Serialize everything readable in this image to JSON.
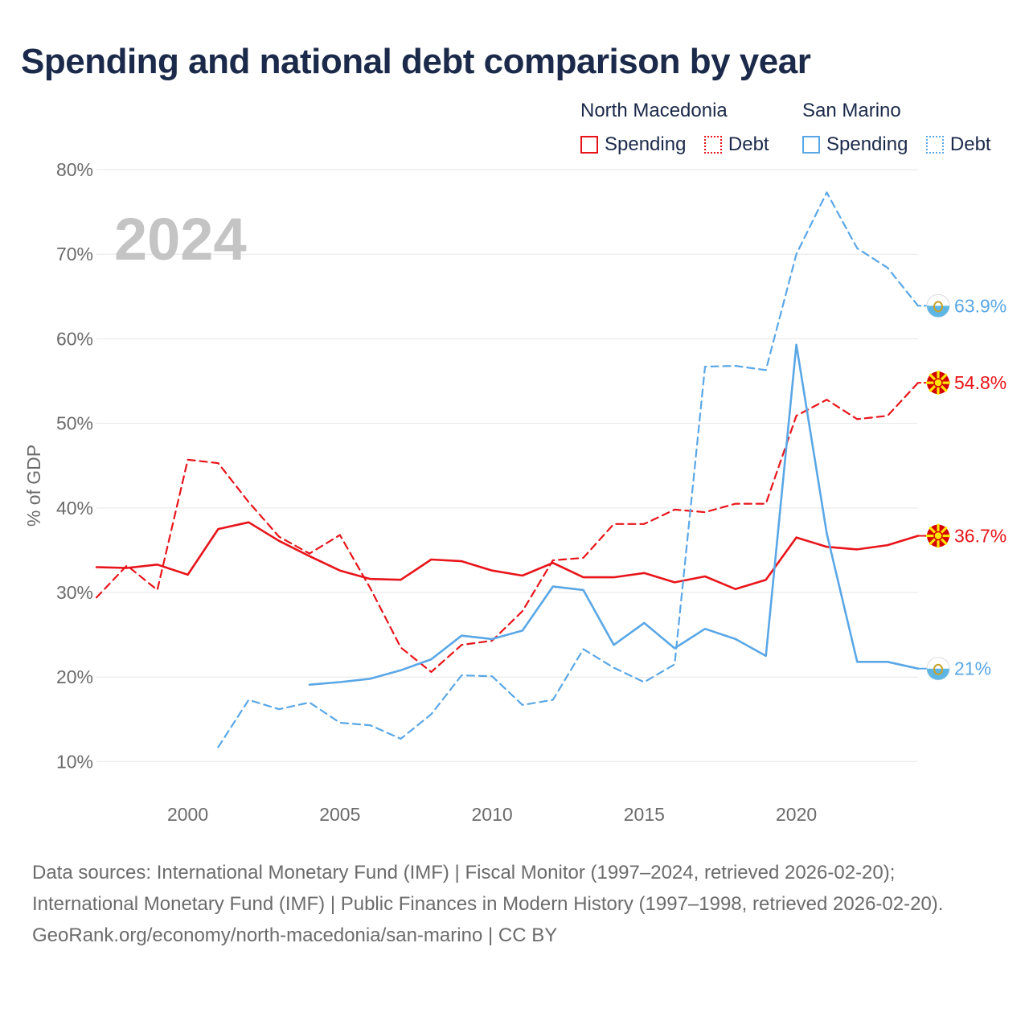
{
  "title": "Spending and national debt comparison by year",
  "legend": {
    "groups": [
      {
        "name": "North Macedonia",
        "items": [
          "Spending",
          "Debt"
        ]
      },
      {
        "name": "San Marino",
        "items": [
          "Spending",
          "Debt"
        ]
      }
    ]
  },
  "colors": {
    "north_macedonia": "#e8141a",
    "san_marino": "#5aa7e6",
    "title": "#1b2a4a"
  },
  "icons": {
    "north_macedonia": "north-macedonia-flag-icon",
    "san_marino": "san-marino-flag-icon"
  },
  "chart_data": {
    "type": "line",
    "title": "Spending and national debt comparison by year",
    "year_label": "2024",
    "xlabel": "",
    "ylabel": "% of GDP",
    "xlim": [
      1997,
      2024
    ],
    "ylim": [
      5,
      82
    ],
    "x_ticks": [
      2000,
      2005,
      2010,
      2015,
      2020
    ],
    "y_ticks": [
      10,
      20,
      30,
      40,
      50,
      60,
      70,
      80
    ],
    "y_tick_labels": [
      "10%",
      "20%",
      "30%",
      "40%",
      "50%",
      "60%",
      "70%",
      "80%"
    ],
    "grid": true,
    "series": [
      {
        "name": "North Macedonia Debt",
        "country": "north_macedonia",
        "style": "dashed",
        "end_label": "54.8%",
        "x": [
          1997,
          1998,
          1999,
          2000,
          2001,
          2002,
          2003,
          2004,
          2005,
          2006,
          2007,
          2008,
          2009,
          2010,
          2011,
          2012,
          2013,
          2014,
          2015,
          2016,
          2017,
          2018,
          2019,
          2020,
          2021,
          2022,
          2023,
          2024
        ],
        "values": [
          29.4,
          33.2,
          30.3,
          45.7,
          45.3,
          40.7,
          36.6,
          34.6,
          36.8,
          30.5,
          23.5,
          20.6,
          23.8,
          24.3,
          27.8,
          33.8,
          34.1,
          38.1,
          38.1,
          39.8,
          39.5,
          40.5,
          40.5,
          50.9,
          52.8,
          50.5,
          50.9,
          54.8
        ]
      },
      {
        "name": "North Macedonia Spending",
        "country": "north_macedonia",
        "style": "solid",
        "end_label": "36.7%",
        "x": [
          1997,
          1998,
          1999,
          2000,
          2001,
          2002,
          2003,
          2004,
          2005,
          2006,
          2007,
          2008,
          2009,
          2010,
          2011,
          2012,
          2013,
          2014,
          2015,
          2016,
          2017,
          2018,
          2019,
          2020,
          2021,
          2022,
          2023,
          2024
        ],
        "values": [
          33.0,
          32.9,
          33.3,
          32.1,
          37.5,
          38.3,
          36.1,
          34.3,
          32.6,
          31.6,
          31.5,
          33.9,
          33.7,
          32.6,
          32.0,
          33.5,
          31.8,
          31.8,
          32.3,
          31.2,
          31.9,
          30.4,
          31.5,
          36.5,
          35.4,
          35.1,
          35.6,
          36.7
        ]
      },
      {
        "name": "San Marino Debt",
        "country": "san_marino",
        "style": "dashed",
        "end_label": "63.9%",
        "x": [
          2001,
          2002,
          2003,
          2004,
          2005,
          2006,
          2007,
          2008,
          2009,
          2010,
          2011,
          2012,
          2013,
          2014,
          2015,
          2016,
          2017,
          2018,
          2019,
          2020,
          2021,
          2022,
          2023,
          2024
        ],
        "values": [
          11.7,
          17.3,
          16.2,
          17.0,
          14.6,
          14.3,
          12.7,
          15.6,
          20.2,
          20.1,
          16.7,
          17.3,
          23.3,
          21.1,
          19.4,
          21.5,
          56.7,
          56.8,
          56.3,
          70.0,
          77.3,
          70.7,
          68.4,
          63.9
        ]
      },
      {
        "name": "San Marino Spending",
        "country": "san_marino",
        "style": "solid",
        "end_label": "21%",
        "x": [
          2004,
          2005,
          2006,
          2007,
          2008,
          2009,
          2010,
          2011,
          2012,
          2013,
          2014,
          2015,
          2016,
          2017,
          2018,
          2019,
          2020,
          2021,
          2022,
          2023,
          2024
        ],
        "values": [
          19.1,
          19.4,
          19.8,
          20.8,
          22.1,
          24.9,
          24.5,
          25.5,
          30.7,
          30.3,
          23.8,
          26.4,
          23.4,
          25.7,
          24.5,
          22.5,
          59.3,
          37.0,
          21.8,
          21.8,
          21.0
        ]
      }
    ]
  },
  "footer": {
    "sources": "Data sources: International Monetary Fund (IMF) | Fiscal Monitor (1997–2024, retrieved 2026-02-20); International Monetary Fund (IMF) | Public Finances in Modern History (1997–1998, retrieved 2026-02-20).",
    "credit": "GeoRank.org/economy/north-macedonia/san-marino | CC BY"
  }
}
